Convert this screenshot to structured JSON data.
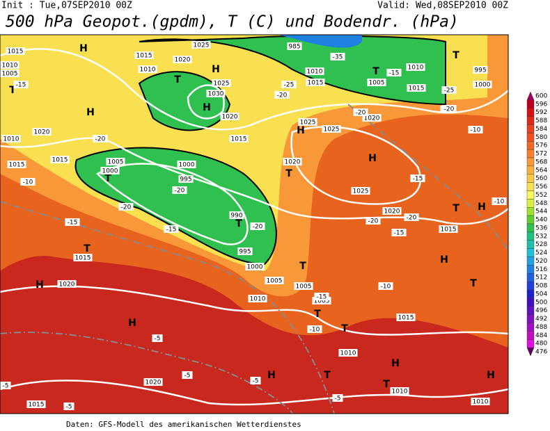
{
  "header": {
    "init": "Init : Tue,07SEP2010 00Z",
    "valid": "Valid: Wed,08SEP2010 00Z",
    "title": "500 hPa Geopot.(gpdm), T (C) und Bodendr. (hPa)"
  },
  "footer": "Daten: GFS-Modell des amerikanischen Wetterdienstes",
  "colorbar": {
    "labels": [
      600,
      596,
      592,
      588,
      584,
      580,
      576,
      572,
      568,
      564,
      560,
      556,
      552,
      548,
      544,
      540,
      536,
      532,
      528,
      524,
      520,
      516,
      512,
      508,
      504,
      500,
      496,
      492,
      488,
      484,
      480,
      476
    ],
    "colors": [
      "#a0005a",
      "#c00020",
      "#d81010",
      "#e02818",
      "#e84020",
      "#f05020",
      "#f06828",
      "#f88030",
      "#f89838",
      "#f8b040",
      "#f8c848",
      "#f8e050",
      "#f8f858",
      "#d8f040",
      "#a0e030",
      "#60d030",
      "#30c050",
      "#20c080",
      "#20c0b0",
      "#20c0d8",
      "#20a0e0",
      "#2080e0",
      "#2060e0",
      "#2040e0",
      "#2020d0",
      "#4010c0",
      "#6010c0",
      "#8010c0",
      "#a010c0",
      "#c010c0",
      "#e010e0",
      "#600060"
    ]
  },
  "map": {
    "centers": [
      "H",
      "H",
      "T",
      "H",
      "T",
      "H",
      "T",
      "T",
      "T",
      "H",
      "H",
      "T",
      "T",
      "T",
      "H",
      "H",
      "T",
      "T",
      "T",
      "T",
      "H",
      "H",
      "T",
      "H",
      "T",
      "H",
      "T",
      "H"
    ],
    "labels": [
      "1015",
      "1010",
      "1005",
      "1015",
      "1010",
      "1020",
      "1025",
      "1030",
      "1025",
      "1020",
      "1015",
      "1020",
      "1010",
      "1015",
      "1015",
      "1005",
      "1000",
      "1000",
      "995",
      "990",
      "995",
      "1000",
      "1005",
      "1010",
      "1005",
      "1005",
      "1020",
      "1025",
      "1020",
      "1025",
      "1020",
      "1025",
      "1010",
      "1015",
      "1005",
      "1010",
      "1015",
      "1000",
      "995",
      "1015",
      "1020",
      "1015",
      "1020",
      "1015",
      "1010",
      "1010",
      "1010",
      "1015",
      "985",
      "-25",
      "-20",
      "-15",
      "-20",
      "-20",
      "-20",
      "-15",
      "-15",
      "-10",
      "-20",
      "-20",
      "-15",
      "-15",
      "-20",
      "-10",
      "-10",
      "-10",
      "-15",
      "-10",
      "-5",
      "-5",
      "-5",
      "-5",
      "-5",
      "-5",
      "-5",
      "-25",
      "-20",
      "-35",
      "-15",
      "-20"
    ]
  }
}
